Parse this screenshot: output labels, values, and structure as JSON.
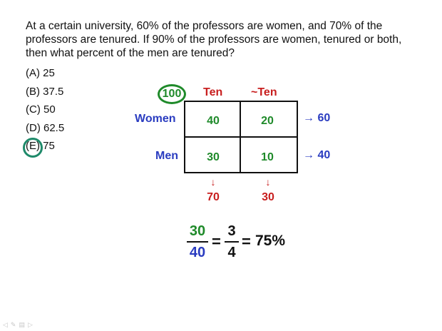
{
  "question": "At a certain university, 60% of the professors are women, and 70% of the professors are tenured.  If 90% of the professors are women, tenured or both, then what percent of the men are tenured?",
  "choices": [
    {
      "label": "(A) 25"
    },
    {
      "label": "(B) 37.5"
    },
    {
      "label": "(C) 50"
    },
    {
      "label": "(D) 62.5"
    },
    {
      "label": "(E) 75",
      "selected": true
    }
  ],
  "table": {
    "total": "100",
    "columns": [
      "Ten",
      "~Ten"
    ],
    "rows": [
      {
        "label": "Women",
        "values": [
          "40",
          "20"
        ],
        "total": "60"
      },
      {
        "label": "Men",
        "values": [
          "30",
          "10"
        ],
        "total": "40"
      }
    ],
    "column_totals": [
      "70",
      "30"
    ],
    "arrow_right": "→",
    "arrow_down": "↓"
  },
  "calculation": {
    "frac1_num": "30",
    "frac1_den": "40",
    "eq1": "=",
    "frac2_num": "3",
    "frac2_den": "4",
    "eq2": "=",
    "result": "75%"
  },
  "colors": {
    "green": "#1f8a2a",
    "red": "#c81e1e",
    "blue": "#2a3cc0",
    "circle": "#1f8a6a"
  },
  "toolbar": {
    "icons": [
      "arrow-icon",
      "pen-icon",
      "board-icon",
      "forward-icon"
    ]
  }
}
